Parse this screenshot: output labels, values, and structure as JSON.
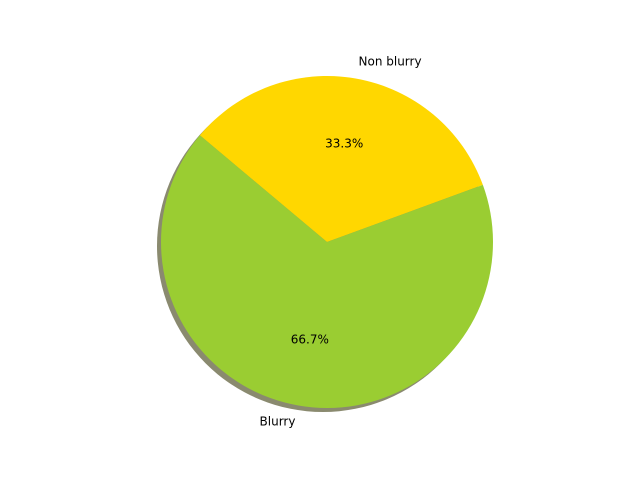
{
  "chart_data": {
    "type": "pie",
    "title": "",
    "series": [
      {
        "slices": [
          {
            "label": "Non blurry",
            "value": 33.3,
            "pct_label": "33.3%",
            "color": "#ffd700"
          },
          {
            "label": "Blurry",
            "value": 66.7,
            "pct_label": "66.7%",
            "color": "#9acd32"
          }
        ]
      }
    ],
    "start_angle_deg": 140,
    "shadow": true,
    "shadow_color": "#8a8a6f"
  }
}
